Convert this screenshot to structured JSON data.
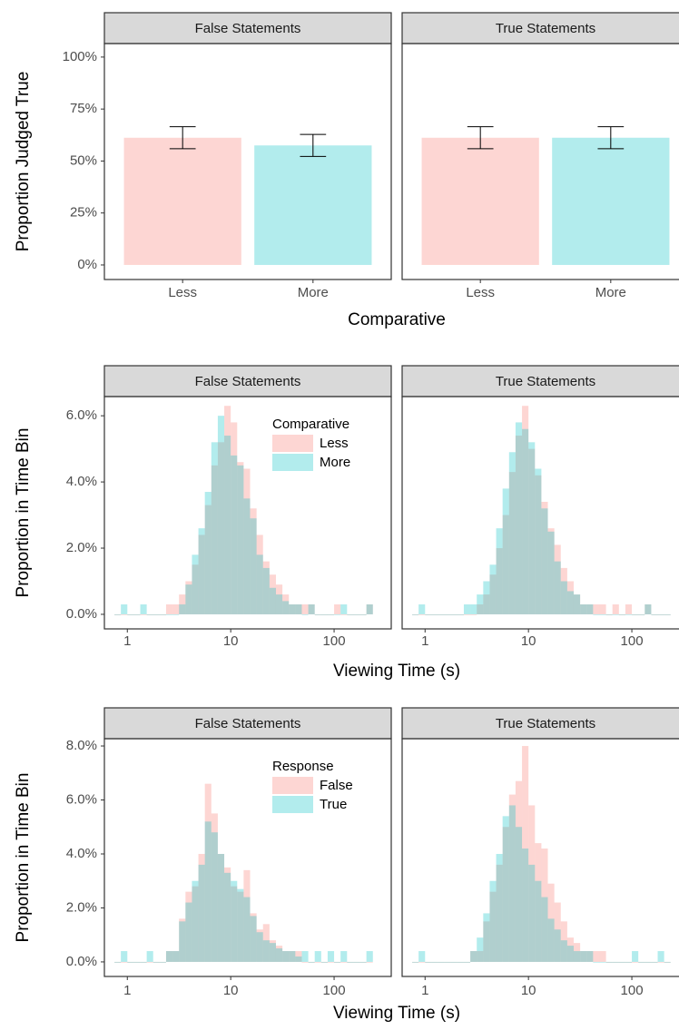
{
  "chart_data": [
    {
      "type": "bar",
      "facets": [
        "False Statements",
        "True Statements"
      ],
      "categories": [
        "Less",
        "More"
      ],
      "values": [
        [
          61.2,
          57.5
        ],
        [
          61.2,
          61.2
        ]
      ],
      "errors": [
        [
          5.3,
          5.3
        ],
        [
          5.3,
          5.3
        ]
      ],
      "colors": [
        "#F8766D",
        "#00BFC4"
      ],
      "alpha": 0.3,
      "xlabel": "Comparative",
      "ylabel": "Proportion Judged True",
      "ylim": [
        -7,
        106.5
      ],
      "yticks": [
        {
          "value": 0,
          "label": "0%"
        },
        {
          "value": 25,
          "label": "25%"
        },
        {
          "value": 50,
          "label": "50%"
        },
        {
          "value": 75,
          "label": "75%"
        },
        {
          "value": 100,
          "label": "100%"
        }
      ],
      "grid": false
    },
    {
      "type": "histogram",
      "facets": [
        "False Statements",
        "True Statements"
      ],
      "xlog": true,
      "xlim": [
        0.6,
        357
      ],
      "xticks": [
        1,
        10,
        100
      ],
      "bins": [
        0.75,
        0.866,
        1,
        1.155,
        1.334,
        1.54,
        1.778,
        2.054,
        2.371,
        2.738,
        3.162,
        3.652,
        4.217,
        4.87,
        5.623,
        6.494,
        7.499,
        8.66,
        10,
        11.548,
        13.335,
        15.399,
        17.783,
        20.535,
        23.714,
        27.384,
        31.623,
        36.517,
        42.17,
        48.697,
        56.234,
        64.938,
        74.989,
        86.596,
        100,
        115.478,
        133.352,
        153.993,
        177.828,
        205.353,
        237.137
      ],
      "series": [
        {
          "name": "Less",
          "color": "#F8766D",
          "values": [
            [
              0,
              0,
              0,
              0,
              0,
              0,
              0,
              0,
              0.3,
              0.3,
              0.6,
              1.0,
              1.5,
              2.4,
              3.3,
              4.5,
              5.2,
              6.3,
              5.8,
              4.6,
              4.4,
              3.2,
              2.4,
              1.6,
              1.2,
              0.9,
              0.6,
              0.3,
              0.3,
              0.3,
              0.3,
              0,
              0,
              0,
              0.3,
              0,
              0,
              0,
              0,
              0.3
            ],
            [
              0,
              0,
              0,
              0,
              0,
              0,
              0,
              0,
              0,
              0,
              0.3,
              0.6,
              1.2,
              2.0,
              3.0,
              4.3,
              5.4,
              6.3,
              5.0,
              4.2,
              3.4,
              2.6,
              2.1,
              1.4,
              1.0,
              0.6,
              0.3,
              0.3,
              0.3,
              0.3,
              0,
              0.3,
              0,
              0.3,
              0,
              0,
              0.3,
              0,
              0,
              0
            ]
          ]
        },
        {
          "name": "More",
          "color": "#00BFC4",
          "values": [
            [
              0,
              0.3,
              0,
              0,
              0.3,
              0,
              0,
              0,
              0,
              0,
              0.3,
              0.9,
              1.8,
              2.6,
              3.7,
              5.2,
              6.0,
              5.4,
              4.8,
              4.5,
              3.5,
              2.9,
              1.8,
              1.4,
              0.8,
              0.6,
              0.4,
              0.3,
              0.3,
              0,
              0.3,
              0,
              0,
              0,
              0,
              0.3,
              0,
              0,
              0,
              0.3
            ],
            [
              0,
              0.3,
              0,
              0,
              0,
              0,
              0,
              0,
              0.3,
              0.3,
              0.6,
              1.0,
              1.5,
              2.6,
              3.8,
              4.9,
              5.8,
              5.6,
              5.2,
              4.4,
              3.2,
              2.5,
              1.6,
              1.0,
              0.7,
              0.6,
              0.3,
              0.3,
              0,
              0,
              0,
              0,
              0,
              0,
              0,
              0,
              0.3,
              0,
              0,
              0
            ]
          ]
        }
      ],
      "alpha": 0.3,
      "legend_title": "Comparative",
      "legend_position": "top-right",
      "xlabel": "Viewing Time (s)",
      "ylabel": "Proportion in Time Bin",
      "ylim": [
        -0.44,
        6.58
      ],
      "yticks": [
        {
          "value": 0,
          "label": "0.0%"
        },
        {
          "value": 2,
          "label": "2.0%"
        },
        {
          "value": 4,
          "label": "4.0%"
        },
        {
          "value": 6,
          "label": "6.0%"
        }
      ],
      "grid": false
    },
    {
      "type": "histogram",
      "facets": [
        "False Statements",
        "True Statements"
      ],
      "xlog": true,
      "xlim": [
        0.6,
        357
      ],
      "xticks": [
        1,
        10,
        100
      ],
      "bins": [
        0.75,
        0.866,
        1,
        1.155,
        1.334,
        1.54,
        1.778,
        2.054,
        2.371,
        2.738,
        3.162,
        3.652,
        4.217,
        4.87,
        5.623,
        6.494,
        7.499,
        8.66,
        10,
        11.548,
        13.335,
        15.399,
        17.783,
        20.535,
        23.714,
        27.384,
        31.623,
        36.517,
        42.17,
        48.697,
        56.234,
        64.938,
        74.989,
        86.596,
        100,
        115.478,
        133.352,
        153.993,
        177.828,
        205.353,
        237.137
      ],
      "series": [
        {
          "name": "False",
          "color": "#F8766D",
          "values": [
            [
              0,
              0,
              0,
              0,
              0,
              0,
              0,
              0,
              0.4,
              0.4,
              1.6,
              2.6,
              2.8,
              4.0,
              6.6,
              5.5,
              4.0,
              3.5,
              2.8,
              2.6,
              3.4,
              1.8,
              1.2,
              1.4,
              0.8,
              0.6,
              0.4,
              0.4,
              0.4,
              0,
              0,
              0,
              0,
              0,
              0,
              0,
              0,
              0,
              0,
              0
            ],
            [
              0,
              0,
              0,
              0,
              0,
              0,
              0,
              0,
              0,
              0.4,
              0.4,
              1.5,
              2.6,
              3.6,
              5.0,
              6.2,
              6.7,
              8.0,
              5.8,
              4.4,
              4.2,
              2.9,
              2.2,
              1.5,
              0.9,
              0.7,
              0.4,
              0.4,
              0.4,
              0.4,
              0,
              0,
              0,
              0,
              0,
              0,
              0,
              0,
              0,
              0
            ]
          ]
        },
        {
          "name": "True",
          "color": "#00BFC4",
          "values": [
            [
              0,
              0.4,
              0,
              0,
              0,
              0.4,
              0,
              0,
              0.4,
              0.4,
              1.5,
              2.2,
              3.0,
              3.6,
              5.2,
              4.8,
              4.0,
              3.3,
              3.0,
              2.7,
              2.4,
              1.7,
              1.1,
              0.8,
              0.7,
              0.5,
              0.4,
              0.4,
              0.2,
              0.4,
              0,
              0.4,
              0,
              0.4,
              0,
              0.4,
              0,
              0,
              0,
              0.4
            ],
            [
              0,
              0.4,
              0,
              0,
              0,
              0,
              0,
              0,
              0,
              0.4,
              0.9,
              1.8,
              3.0,
              4.0,
              5.4,
              5.8,
              5.0,
              4.2,
              3.6,
              3.0,
              2.4,
              1.6,
              1.2,
              0.8,
              0.6,
              0.4,
              0.4,
              0.4,
              0,
              0,
              0,
              0,
              0,
              0,
              0.4,
              0,
              0,
              0,
              0.4,
              0
            ]
          ]
        }
      ],
      "alpha": 0.3,
      "legend_title": "Response",
      "legend_position": "top-right",
      "xlabel": "Viewing Time (s)",
      "ylabel": "Proportion in Time Bin",
      "ylim": [
        -0.54,
        8.27
      ],
      "yticks": [
        {
          "value": 0,
          "label": "0.0%"
        },
        {
          "value": 2,
          "label": "2.0%"
        },
        {
          "value": 4,
          "label": "4.0%"
        },
        {
          "value": 6,
          "label": "6.0%"
        },
        {
          "value": 8,
          "label": "8.0%"
        }
      ],
      "grid": false
    }
  ]
}
